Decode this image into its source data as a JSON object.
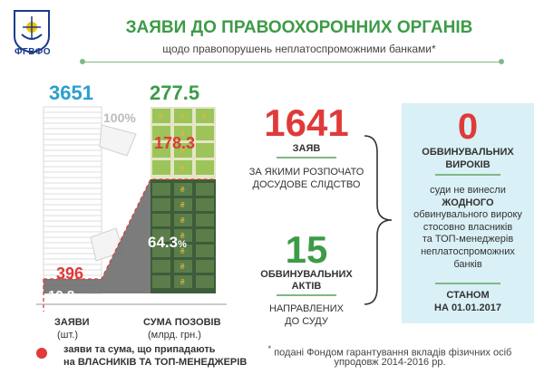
{
  "logo": {
    "text": "ФГВФО",
    "colors": {
      "blue": "#1a3a8c",
      "gold": "#f2c200"
    }
  },
  "header": {
    "title": "ЗАЯВИ ДО ПРАВООХОРОННИХ ОРГАНІВ",
    "subtitle": "щодо правопорушень неплатоспроможними банками*"
  },
  "left_chart": {
    "applications_total": "3651",
    "claims_total": "277.5",
    "applications_total_pct": "100%",
    "claims_owners": "178.3",
    "claims_owners_pct": "64.3",
    "applications_owners": "396",
    "applications_owners_pct": "10.8",
    "pct_sign": "%",
    "label_applications": "ЗАЯВИ",
    "label_applications_unit": "(шт.)",
    "label_claims": "СУМА ПОЗОВІВ",
    "label_claims_unit": "(млрд. грн.)",
    "legend_line1": "заяви та сума, що припадають",
    "legend_line2": "на ВЛАСНИКІВ ТА ТОП-МЕНЕДЖЕРІВ"
  },
  "middle": {
    "applications_count": "1641",
    "applications_label": "ЗАЯВ",
    "applications_desc_1": "ЗА ЯКИМИ РОЗПОЧАТО",
    "applications_desc_2": "ДОСУДОВЕ СЛІДСТВО",
    "indictments_count": "15",
    "indictments_label_1": "ОБВИНУВАЛЬНИХ",
    "indictments_label_2": "АКТІВ",
    "indictments_desc_1": "НАПРАВЛЕНИХ",
    "indictments_desc_2": "ДО СУДУ"
  },
  "panel": {
    "verdicts_count": "0",
    "verdicts_label_1": "ОБВИНУВАЛЬНИХ",
    "verdicts_label_2": "ВИРОКІВ",
    "text_1": "суди не винесли",
    "text_2": "ЖОДНОГО",
    "text_3": "обвинувального вироку",
    "text_4": "стосовно власників",
    "text_5": "та ТОП-менеджерів",
    "text_6": "неплатоспроможних",
    "text_7": "банків",
    "date_1": "СТАНОМ",
    "date_2": "НА 01.01.2017"
  },
  "footnote": {
    "marker": "*",
    "line1": "подані Фондом гарантування вкладів фізичних осіб",
    "line2": "упродовж 2014-2016 рр."
  },
  "colors": {
    "green": "#3d9b47",
    "blue": "#2a9fd0",
    "red": "#e03a3a",
    "panel_bg": "#d9f0f6",
    "dark_green": "#3d5c3a"
  }
}
